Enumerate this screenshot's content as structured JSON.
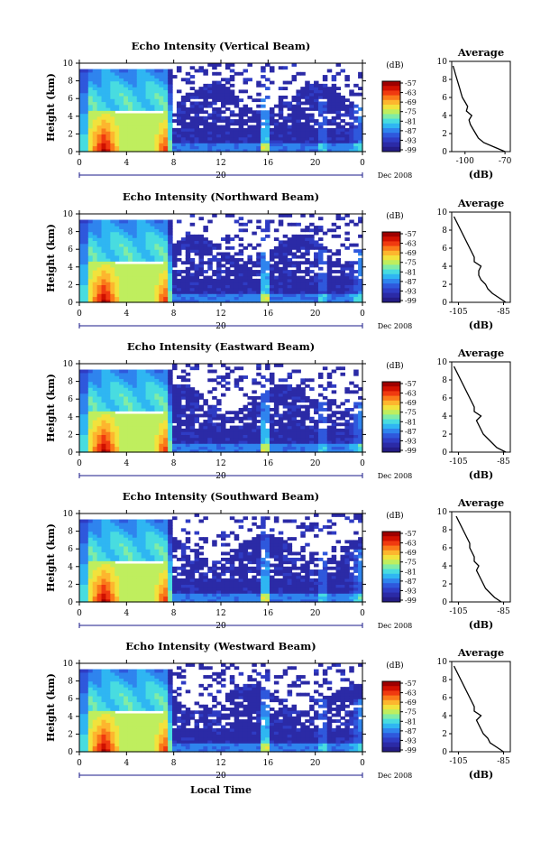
{
  "x_axis_label": "Local Time",
  "colorbar": {
    "unit": "(dB)",
    "ticks": [
      "-57",
      "-63",
      "-69",
      "-75",
      "-81",
      "-87",
      "-93",
      "-99"
    ],
    "colors": [
      "#9e0000",
      "#d01000",
      "#f03a10",
      "#fa7a1a",
      "#fdb62e",
      "#f2e23c",
      "#bfee5e",
      "#80eca6",
      "#48dce0",
      "#2fb6f2",
      "#2f84ee",
      "#2f58dc",
      "#2f3cc4",
      "#2b2aa6",
      "#241c86"
    ]
  },
  "date_label": "Dec 2008",
  "day_marker": "20",
  "x_ticks": [
    "0",
    "4",
    "8",
    "12",
    "16",
    "20",
    "0"
  ],
  "y_ticks": [
    "0",
    "2",
    "4",
    "6",
    "8",
    "10"
  ],
  "y_label": "Height (km)",
  "avg_title": "Average",
  "avg_xlabel": "(dB)",
  "chart_data": [
    {
      "type": "heatmap",
      "title": "Echo Intensity (Vertical Beam)",
      "x_hours": [
        0,
        24
      ],
      "y_km": [
        0,
        10
      ],
      "average_profile": {
        "title": "Average",
        "xticks": [
          "-100",
          "-70"
        ],
        "xlim": [
          -110,
          -66
        ],
        "height_km": [
          0,
          0.5,
          1,
          1.5,
          2,
          2.5,
          3,
          3.5,
          4,
          4.5,
          5,
          5.5,
          6,
          6.5,
          7,
          7.5,
          8,
          8.5,
          9,
          9.5
        ],
        "db": [
          -70,
          -78,
          -86,
          -90,
          -92,
          -94,
          -96,
          -97,
          -95,
          -99,
          -98,
          -100,
          -102,
          -103,
          -104,
          -105,
          -106,
          -107,
          -108,
          -109
        ]
      }
    },
    {
      "type": "heatmap",
      "title": "Echo Intensity (Northward Beam)",
      "x_hours": [
        0,
        24
      ],
      "y_km": [
        0,
        10
      ],
      "average_profile": {
        "title": "Average",
        "xticks": [
          "-105",
          "-85"
        ],
        "xlim": [
          -108,
          -82
        ],
        "height_km": [
          0,
          0.5,
          1,
          1.5,
          2,
          2.5,
          3,
          3.5,
          4,
          4.5,
          5,
          5.5,
          6,
          6.5,
          7,
          7.5,
          8,
          8.5,
          9,
          9.5
        ],
        "db": [
          -84,
          -87,
          -90,
          -92,
          -93,
          -95,
          -96,
          -96,
          -95,
          -98,
          -98,
          -99,
          -100,
          -101,
          -102,
          -103,
          -104,
          -105,
          -106,
          -107
        ]
      }
    },
    {
      "type": "heatmap",
      "title": "Echo Intensity (Eastward Beam)",
      "x_hours": [
        0,
        24
      ],
      "y_km": [
        0,
        10
      ],
      "average_profile": {
        "title": "Average",
        "xticks": [
          "-105",
          "-85"
        ],
        "xlim": [
          -108,
          -82
        ],
        "height_km": [
          0,
          0.5,
          1,
          1.5,
          2,
          2.5,
          3,
          3.5,
          4,
          4.5,
          5,
          5.5,
          6,
          6.5,
          7,
          7.5,
          8,
          8.5,
          9,
          9.5
        ],
        "db": [
          -84,
          -88,
          -90,
          -92,
          -94,
          -95,
          -96,
          -97,
          -95,
          -98,
          -98,
          -99,
          -100,
          -101,
          -102,
          -103,
          -104,
          -105,
          -106,
          -107
        ]
      }
    },
    {
      "type": "heatmap",
      "title": "Echo Intensity (Southward Beam)",
      "x_hours": [
        0,
        24
      ],
      "y_km": [
        0,
        10
      ],
      "average_profile": {
        "title": "Average",
        "xticks": [
          "-105",
          "-85"
        ],
        "xlim": [
          -108,
          -82
        ],
        "height_km": [
          0,
          0.5,
          1,
          1.5,
          2,
          2.5,
          3,
          3.5,
          4,
          4.5,
          5,
          5.5,
          6,
          6.5,
          7,
          7.5,
          8,
          8.5,
          9,
          9.5
        ],
        "db": [
          -86,
          -89,
          -91,
          -93,
          -94,
          -95,
          -96,
          -97,
          -96,
          -98,
          -98,
          -99,
          -100,
          -100,
          -101,
          -102,
          -103,
          -104,
          -105,
          -106
        ]
      }
    },
    {
      "type": "heatmap",
      "title": "Echo Intensity (Westward Beam)",
      "x_hours": [
        0,
        24
      ],
      "y_km": [
        0,
        10
      ],
      "average_profile": {
        "title": "Average",
        "xticks": [
          "-105",
          "-85"
        ],
        "xlim": [
          -108,
          -82
        ],
        "height_km": [
          0,
          0.5,
          1,
          1.5,
          2,
          2.5,
          3,
          3.5,
          4,
          4.5,
          5,
          5.5,
          6,
          6.5,
          7,
          7.5,
          8,
          8.5,
          9,
          9.5
        ],
        "db": [
          -85,
          -88,
          -91,
          -92,
          -94,
          -95,
          -96,
          -97,
          -95,
          -98,
          -98,
          -99,
          -100,
          -101,
          -102,
          -103,
          -104,
          -105,
          -106,
          -107
        ]
      }
    }
  ]
}
